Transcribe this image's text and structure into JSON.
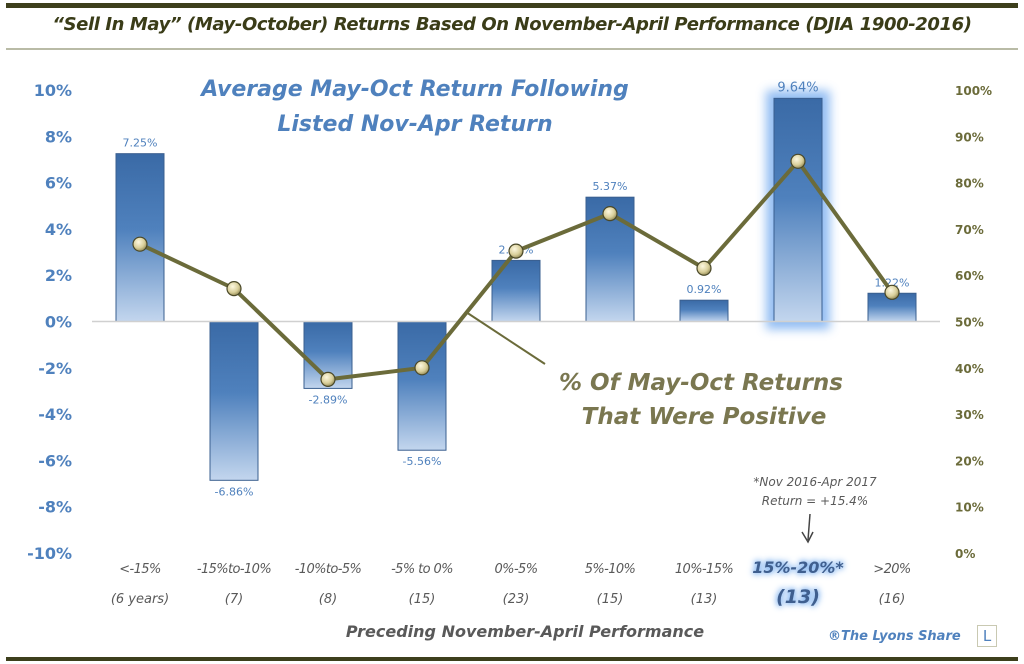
{
  "title": "“Sell In May” (May-October) Returns Based On November-April Performance (DJIA 1900-2016)",
  "chart_data": {
    "type": "bar",
    "title": "“Sell In May” (May-October) Returns Based On November-April Performance (DJIA 1900-2016)",
    "xlabel": "Preceding November-April Performance",
    "ylabel": "",
    "y2label": "",
    "categories": [
      "<-15%",
      "-15%to-10%",
      "-10%to-5%",
      "-5% to 0%",
      "0%-5%",
      "5%-10%",
      "10%-15%",
      "15%-20%*",
      ">20%"
    ],
    "category_counts": [
      "(6 years)",
      "(7)",
      "(8)",
      "(15)",
      "(23)",
      "(15)",
      "(13)",
      "(13)",
      "(16)"
    ],
    "highlighted_category": "15%-20%*",
    "series": [
      {
        "name": "Average May-Oct Return Following Listed Nov-Apr Return",
        "type": "bar",
        "axis": "left",
        "values": [
          7.25,
          -6.86,
          -2.89,
          -5.56,
          2.64,
          5.37,
          0.92,
          9.64,
          1.22
        ],
        "labels": [
          "7.25%",
          "-6.86%",
          "-2.89%",
          "-5.56%",
          "2.64%",
          "5.37%",
          "0.92%",
          "9.64%",
          "1.22%"
        ],
        "color": "#4f81bd"
      },
      {
        "name": "% Of May-Oct Returns That Were Positive",
        "type": "line",
        "axis": "right",
        "values": [
          66.7,
          57.1,
          37.5,
          40.0,
          65.2,
          73.3,
          61.5,
          84.6,
          56.3
        ],
        "color": "#6b6b3a"
      }
    ],
    "ylim": [
      -10,
      10
    ],
    "y_ticks": [
      "10%",
      "8%",
      "6%",
      "4%",
      "2%",
      "0%",
      "-2%",
      "-4%",
      "-6%",
      "-8%",
      "-10%"
    ],
    "y2lim": [
      0,
      100
    ],
    "y2_ticks": [
      "100%",
      "90%",
      "80%",
      "70%",
      "60%",
      "50%",
      "40%",
      "30%",
      "20%",
      "10%",
      "0%"
    ],
    "annotations": {
      "bar_series_title_line1": "Average May-Oct Return Following",
      "bar_series_title_line2": "Listed Nov-Apr Return",
      "line_series_title_line1": "% Of May-Oct Returns",
      "line_series_title_line2": "That Were Positive",
      "footnote_line1": "*Nov 2016-Apr 2017",
      "footnote_line2": "Return = +15.4%"
    },
    "grid": false,
    "legend": "none"
  },
  "credit": {
    "text": "®The Lyons Share",
    "logo_letter": "L"
  },
  "colors": {
    "bar": "#4f81bd",
    "bar_dark": "#3a6aa6",
    "bar_light": "#c3d6ee",
    "line": "#6b6b3a",
    "left_axis": "#4f81bd",
    "right_axis": "#6b6b3a",
    "title": "#3a3c18",
    "category_text": "#595959"
  }
}
